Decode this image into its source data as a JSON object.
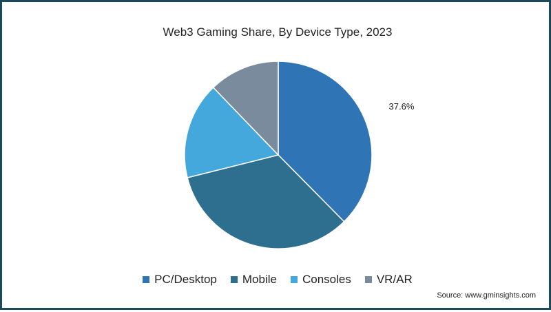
{
  "chart_data": {
    "type": "pie",
    "title": "Web3 Gaming Share, By Device Type, 2023",
    "categories": [
      "PC/Desktop",
      "Mobile",
      "Consoles",
      "VR/AR"
    ],
    "values": [
      37.6,
      33.5,
      16.7,
      12.2
    ],
    "colors": [
      "#2f75b6",
      "#2e6e8e",
      "#45a8dd",
      "#7a8b9e"
    ],
    "data_labels": [
      "37.6%",
      null,
      null,
      null
    ],
    "legend_position": "bottom"
  },
  "source": "Source: www.gminsights.com",
  "colors": {
    "border": "#1d4a5a",
    "slice_stroke": "#ffffff"
  }
}
